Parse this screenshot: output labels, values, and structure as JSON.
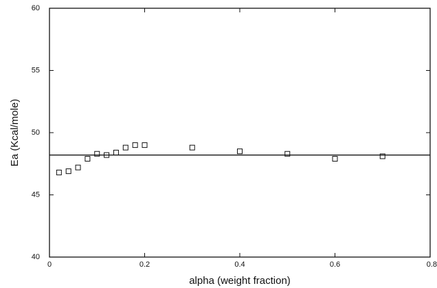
{
  "chart_data": {
    "type": "scatter",
    "x_label": "alpha (weight fraction)",
    "y_label": "Ea (Kcal/mole)",
    "x": [
      0.02,
      0.04,
      0.06,
      0.08,
      0.1,
      0.12,
      0.14,
      0.16,
      0.18,
      0.2,
      0.3,
      0.4,
      0.5,
      0.6,
      0.7
    ],
    "values": [
      46.8,
      46.9,
      47.2,
      47.9,
      48.3,
      48.2,
      48.4,
      48.8,
      49.0,
      49.0,
      48.8,
      48.5,
      48.3,
      47.9,
      48.1
    ],
    "hline": 48.2,
    "xlim": [
      0,
      0.8
    ],
    "xticks": [
      0,
      0.2,
      0.4,
      0.6,
      0.8
    ],
    "ylim": [
      40,
      60
    ],
    "yticks": [
      40,
      45,
      50,
      55,
      60
    ],
    "color": "#111111"
  }
}
